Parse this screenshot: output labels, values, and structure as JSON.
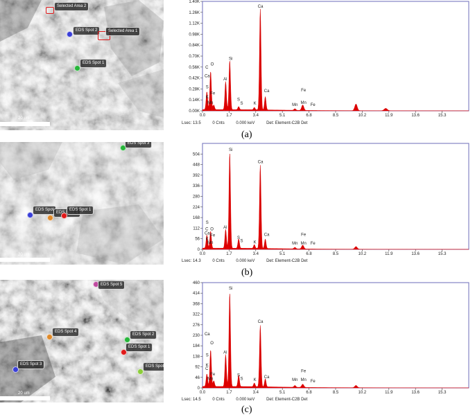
{
  "figure": {
    "panels": [
      {
        "caption": "(a)",
        "sem": {
          "scale_label": "20 um",
          "tags": [
            {
              "label": "Selected Area 2",
              "kind": "area"
            },
            {
              "label": "EDS Spot 2",
              "kind": "spot",
              "color": "#3a3fd8"
            },
            {
              "label": "Selected Area 1",
              "kind": "area"
            },
            {
              "label": "EDS Spot 1",
              "kind": "spot",
              "color": "#27b53a"
            }
          ]
        },
        "footer": {
          "lsec": "Lsec: 13.5",
          "cnts": "0 Cnts",
          "kev": "0.000 keV",
          "det": "Det: Element-C2B Det"
        }
      },
      {
        "caption": "(b)",
        "sem": {
          "scale_label": "20 um",
          "tags": [
            {
              "label": "EDS Spot 3",
              "kind": "spot",
              "color": "#27b53a"
            },
            {
              "label": "EDS Spot",
              "kind": "spot",
              "color": "#3a3fd8"
            },
            {
              "label": "EDS Spot 4",
              "kind": "spot",
              "color": "#e08a2a"
            },
            {
              "label": "EDS Spot 1",
              "kind": "spot",
              "color": "#e01818"
            }
          ]
        },
        "footer": {
          "lsec": "Lsec: 14.3",
          "cnts": "0 Cnts",
          "kev": "0.000 keV",
          "det": "Det: Element-C2B Det"
        }
      },
      {
        "caption": "(c)",
        "sem": {
          "scale_label": "20 um",
          "tags": [
            {
              "label": "EDS Spot 5",
              "kind": "spot",
              "color": "#c04aa0"
            },
            {
              "label": "EDS Spot 4",
              "kind": "spot",
              "color": "#e08a2a"
            },
            {
              "label": "EDS Spot 2",
              "kind": "spot",
              "color": "#27b53a"
            },
            {
              "label": "EDS Spot 1",
              "kind": "spot",
              "color": "#e01818"
            },
            {
              "label": "EDS Spot 3",
              "kind": "spot",
              "color": "#3a3fd8"
            },
            {
              "label": "EDS Spot 6",
              "kind": "spot",
              "color": "#8ccd3a"
            }
          ]
        },
        "footer": {
          "lsec": "Lsec: 14.5",
          "cnts": "0 Cnts",
          "kev": "0.000 keV",
          "det": "Det: Element-C2B Det"
        }
      }
    ]
  },
  "chart_data": [
    {
      "type": "area",
      "fill_color": "#e00000",
      "xlim": [
        0,
        17
      ],
      "x_ticks": [
        "0.0",
        "1.7",
        "3.4",
        "5.1",
        "6.8",
        "8.5",
        "10.2",
        "11.9",
        "13.6",
        "15.3"
      ],
      "ylim": [
        0,
        1400
      ],
      "y_ticks": [
        "0.00K",
        "0.14K",
        "0.28K",
        "0.42K",
        "0.56K",
        "0.70K",
        "0.84K",
        "0.98K",
        "1.12K",
        "1.26K",
        "1.40K"
      ],
      "baseline": 15,
      "peaks": [
        {
          "x": 0.28,
          "y": 230,
          "w": 0.05
        },
        {
          "x": 0.52,
          "y": 490,
          "w": 0.05
        },
        {
          "x": 0.72,
          "y": 60,
          "w": 0.05
        },
        {
          "x": 1.48,
          "y": 360,
          "w": 0.05
        },
        {
          "x": 1.74,
          "y": 630,
          "w": 0.05
        },
        {
          "x": 2.31,
          "y": 40,
          "w": 0.05
        },
        {
          "x": 3.31,
          "y": 30,
          "w": 0.05
        },
        {
          "x": 3.69,
          "y": 1290,
          "w": 0.05
        },
        {
          "x": 4.01,
          "y": 170,
          "w": 0.05
        },
        {
          "x": 5.9,
          "y": 20,
          "w": 0.06
        },
        {
          "x": 6.4,
          "y": 70,
          "w": 0.07
        },
        {
          "x": 9.8,
          "y": 85,
          "w": 0.08
        },
        {
          "x": 11.7,
          "y": 30,
          "w": 0.1
        }
      ],
      "element_labels": [
        {
          "text": "O",
          "x": 0.62,
          "y": 580
        },
        {
          "text": "C",
          "x": 0.28,
          "y": 540
        },
        {
          "text": "Ca",
          "x": 0.3,
          "y": 430
        },
        {
          "text": "S",
          "x": 0.3,
          "y": 290
        },
        {
          "text": "Fe",
          "x": 0.65,
          "y": 210
        },
        {
          "text": "K",
          "x": 0.3,
          "y": 160
        },
        {
          "text": "Mn",
          "x": 0.5,
          "y": 90
        },
        {
          "text": "Si",
          "x": 1.8,
          "y": 650
        },
        {
          "text": "Al",
          "x": 1.45,
          "y": 390
        },
        {
          "text": "S",
          "x": 2.3,
          "y": 130
        },
        {
          "text": "S",
          "x": 2.5,
          "y": 80
        },
        {
          "text": "Ca",
          "x": 3.7,
          "y": 1320
        },
        {
          "text": "K",
          "x": 3.35,
          "y": 80
        },
        {
          "text": "Ca",
          "x": 4.1,
          "y": 240
        },
        {
          "text": "Fe",
          "x": 6.45,
          "y": 250
        },
        {
          "text": "Mn",
          "x": 5.9,
          "y": 60
        },
        {
          "text": "Mn",
          "x": 6.45,
          "y": 90
        },
        {
          "text": "Fe",
          "x": 7.05,
          "y": 60
        }
      ]
    },
    {
      "type": "area",
      "fill_color": "#e00000",
      "xlim": [
        0,
        17
      ],
      "x_ticks": [
        "0.0",
        "1.7",
        "3.4",
        "5.1",
        "6.8",
        "8.5",
        "10.2",
        "11.9",
        "13.6",
        "15.3"
      ],
      "ylim": [
        0,
        560
      ],
      "y_ticks": [
        "0",
        "56",
        "112",
        "168",
        "224",
        "280",
        "336",
        "392",
        "448",
        "504"
      ],
      "baseline": 6,
      "peaks": [
        {
          "x": 0.28,
          "y": 70,
          "w": 0.05
        },
        {
          "x": 0.52,
          "y": 90,
          "w": 0.05
        },
        {
          "x": 1.48,
          "y": 100,
          "w": 0.05
        },
        {
          "x": 1.74,
          "y": 505,
          "w": 0.05
        },
        {
          "x": 2.31,
          "y": 50,
          "w": 0.05
        },
        {
          "x": 3.31,
          "y": 20,
          "w": 0.05
        },
        {
          "x": 3.69,
          "y": 440,
          "w": 0.05
        },
        {
          "x": 4.01,
          "y": 50,
          "w": 0.05
        },
        {
          "x": 5.9,
          "y": 8,
          "w": 0.06
        },
        {
          "x": 6.4,
          "y": 20,
          "w": 0.07
        },
        {
          "x": 9.8,
          "y": 14,
          "w": 0.08
        }
      ],
      "element_labels": [
        {
          "text": "S",
          "x": 0.3,
          "y": 135
        },
        {
          "text": "C",
          "x": 0.28,
          "y": 100
        },
        {
          "text": "O",
          "x": 0.6,
          "y": 100
        },
        {
          "text": "Ca",
          "x": 0.3,
          "y": 78
        },
        {
          "text": "Fe",
          "x": 0.65,
          "y": 68
        },
        {
          "text": "K",
          "x": 0.3,
          "y": 48
        },
        {
          "text": "Mn",
          "x": 0.5,
          "y": 30
        },
        {
          "text": "Si",
          "x": 1.8,
          "y": 520
        },
        {
          "text": "Al",
          "x": 1.45,
          "y": 110
        },
        {
          "text": "S",
          "x": 2.3,
          "y": 55
        },
        {
          "text": "S",
          "x": 2.5,
          "y": 38
        },
        {
          "text": "Ca",
          "x": 3.7,
          "y": 455
        },
        {
          "text": "K",
          "x": 3.35,
          "y": 32
        },
        {
          "text": "Ca",
          "x": 4.1,
          "y": 72
        },
        {
          "text": "Fe",
          "x": 6.45,
          "y": 72
        },
        {
          "text": "Mn",
          "x": 5.9,
          "y": 25
        },
        {
          "text": "Mn",
          "x": 6.45,
          "y": 25
        },
        {
          "text": "Fe",
          "x": 7.05,
          "y": 25
        }
      ]
    },
    {
      "type": "area",
      "fill_color": "#e00000",
      "xlim": [
        0,
        17
      ],
      "x_ticks": [
        "0.0",
        "1.7",
        "3.4",
        "5.1",
        "6.8",
        "8.5",
        "10.2",
        "11.9",
        "13.6",
        "15.3"
      ],
      "ylim": [
        0,
        460
      ],
      "y_ticks": [
        "0",
        "46",
        "92",
        "138",
        "184",
        "230",
        "276",
        "322",
        "368",
        "414",
        "460"
      ],
      "baseline": 6,
      "peaks": [
        {
          "x": 0.28,
          "y": 55,
          "w": 0.05
        },
        {
          "x": 0.52,
          "y": 160,
          "w": 0.05
        },
        {
          "x": 0.72,
          "y": 25,
          "w": 0.05
        },
        {
          "x": 1.48,
          "y": 140,
          "w": 0.05
        },
        {
          "x": 1.74,
          "y": 410,
          "w": 0.05
        },
        {
          "x": 2.31,
          "y": 50,
          "w": 0.05
        },
        {
          "x": 3.31,
          "y": 16,
          "w": 0.05
        },
        {
          "x": 3.69,
          "y": 268,
          "w": 0.05
        },
        {
          "x": 4.01,
          "y": 35,
          "w": 0.05
        },
        {
          "x": 5.9,
          "y": 8,
          "w": 0.06
        },
        {
          "x": 6.4,
          "y": 14,
          "w": 0.07
        },
        {
          "x": 9.8,
          "y": 10,
          "w": 0.08
        }
      ],
      "element_labels": [
        {
          "text": "Ca",
          "x": 0.3,
          "y": 230
        },
        {
          "text": "O",
          "x": 0.6,
          "y": 190
        },
        {
          "text": "S",
          "x": 0.3,
          "y": 138
        },
        {
          "text": "K",
          "x": 0.3,
          "y": 94
        },
        {
          "text": "C",
          "x": 0.28,
          "y": 78
        },
        {
          "text": "Fe",
          "x": 0.65,
          "y": 55
        },
        {
          "text": "Mn",
          "x": 0.5,
          "y": 35
        },
        {
          "text": "Si",
          "x": 1.8,
          "y": 430
        },
        {
          "text": "Al",
          "x": 1.45,
          "y": 150
        },
        {
          "text": "S",
          "x": 2.3,
          "y": 50
        },
        {
          "text": "S",
          "x": 2.5,
          "y": 35
        },
        {
          "text": "Ca",
          "x": 3.7,
          "y": 285
        },
        {
          "text": "K",
          "x": 3.35,
          "y": 30
        },
        {
          "text": "Ca",
          "x": 4.1,
          "y": 42
        },
        {
          "text": "Fe",
          "x": 6.45,
          "y": 68
        },
        {
          "text": "Mn",
          "x": 5.9,
          "y": 30
        },
        {
          "text": "Mn",
          "x": 6.45,
          "y": 30
        },
        {
          "text": "Fe",
          "x": 7.05,
          "y": 24
        }
      ]
    }
  ]
}
